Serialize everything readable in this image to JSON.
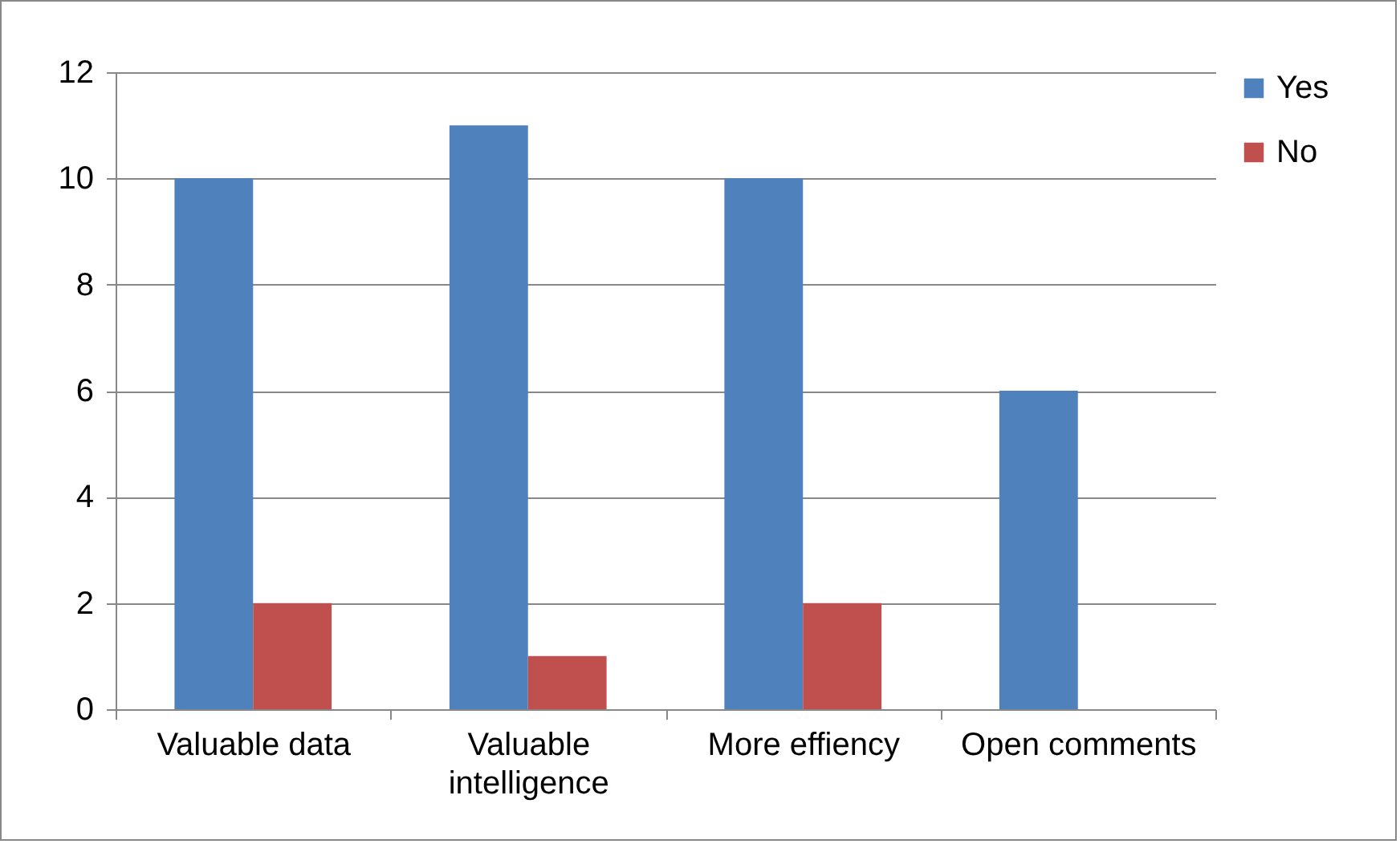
{
  "chart_data": {
    "type": "bar",
    "categories": [
      "Valuable data",
      "Valuable intelligence",
      "More effiency",
      "Open comments"
    ],
    "series": [
      {
        "name": "Yes",
        "color": "#4f81bd",
        "values": [
          10,
          11,
          10,
          6
        ]
      },
      {
        "name": "No",
        "color": "#c0504d",
        "values": [
          2,
          1,
          2,
          0
        ]
      }
    ],
    "ylim": [
      0,
      12
    ],
    "yticks": [
      0,
      2,
      4,
      6,
      8,
      10,
      12
    ],
    "grid": "y",
    "legend": "right"
  }
}
